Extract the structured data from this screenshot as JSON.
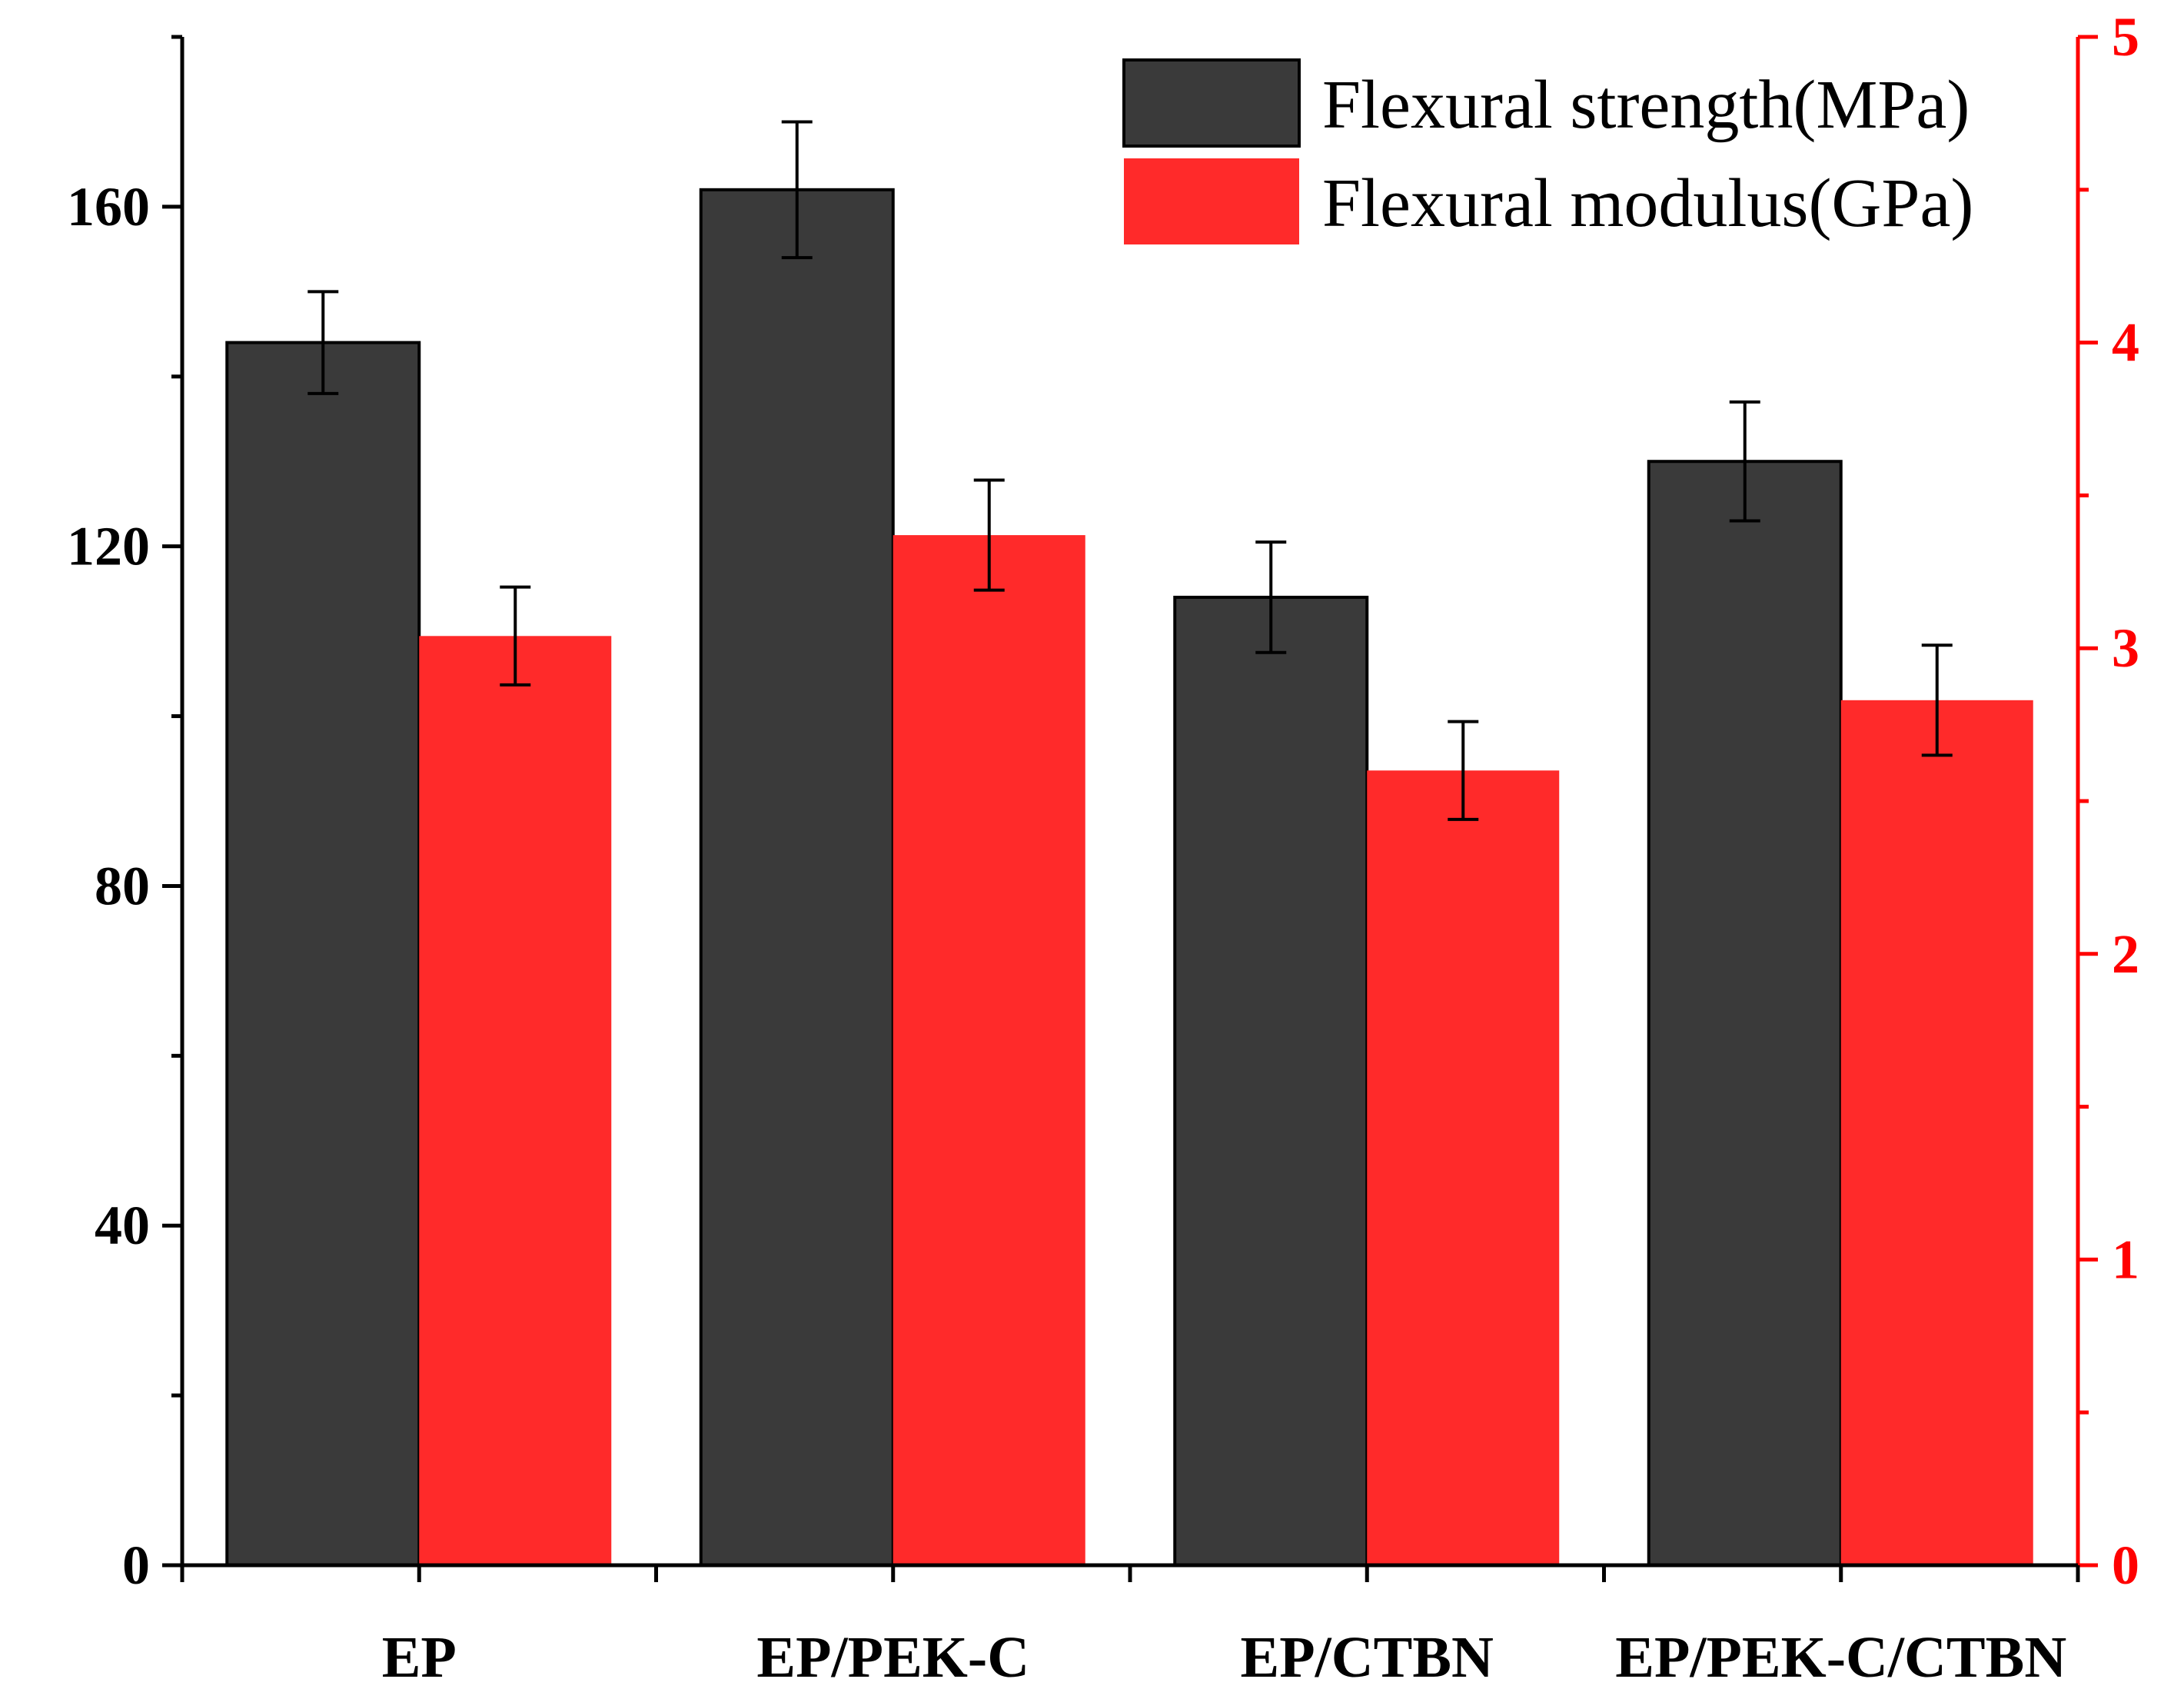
{
  "chart_data": {
    "type": "bar",
    "categories": [
      "EP",
      "EP/PEK-C",
      "EP/CTBN",
      "EP/PEK-C/CTBN"
    ],
    "series": [
      {
        "name": "Flexural strength(MPa)",
        "axis": "left",
        "color": "#3a3a3a",
        "values": [
          144,
          162,
          114,
          130
        ],
        "errors": [
          6,
          8,
          6.5,
          7
        ]
      },
      {
        "name": "Flexural modulus(GPa)",
        "axis": "right",
        "color": "#ff2a2a",
        "values": [
          3.04,
          3.37,
          2.6,
          2.83
        ],
        "errors": [
          0.16,
          0.18,
          0.16,
          0.18
        ]
      }
    ],
    "y_left": {
      "lim": [
        0,
        180
      ],
      "ticks": [
        0,
        40,
        80,
        120,
        160
      ],
      "minor_step": 20,
      "color": "#000000"
    },
    "y_right": {
      "lim": [
        0,
        5
      ],
      "ticks": [
        0,
        1,
        2,
        3,
        4,
        5
      ],
      "minor_step": 0.5,
      "color": "#ff0000"
    },
    "title": "",
    "xlabel": "",
    "ylabel": "",
    "legend": "top-right"
  }
}
